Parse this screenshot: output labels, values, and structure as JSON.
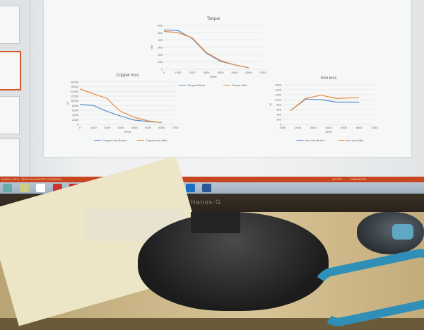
{
  "status_bar": {
    "left_text": "SLIDE 4 OF 8 · ENGLISH (UNITED KINGDOM)",
    "notes": "NOTES",
    "comments": "COMMENTS"
  },
  "monitor": {
    "brand": "HANNS-G"
  },
  "taskbar": {
    "icons": [
      "windows-start-icon",
      "file-explorer-icon",
      "chrome-icon",
      "vivaldi-icon",
      "acrobat-icon",
      "network-icon",
      "folder-icon",
      "antivirus-icon",
      "excel-icon",
      "powerpoint-icon",
      "media-icon",
      "outlook-icon",
      "word-icon"
    ]
  },
  "colors": {
    "series_blue": "#5b8fd0",
    "series_orange": "#e88a3c",
    "status_bar": "#c8461f"
  },
  "chart_data": [
    {
      "type": "line",
      "title": "Torque",
      "xlabel": "RPM",
      "ylabel": "Nm",
      "xlim": [
        0,
        7000
      ],
      "ylim": [
        0,
        600
      ],
      "xticks": [
        0,
        1000,
        2000,
        3000,
        4000,
        5000,
        6000,
        7000
      ],
      "yticks": [
        0,
        100,
        200,
        300,
        400,
        500,
        600
      ],
      "grid": true,
      "legend": "bottom",
      "series": [
        {
          "name": "Torque Before",
          "color": "#5b8fd0",
          "x": [
            0,
            1000,
            2000,
            3000,
            4000,
            5000,
            6000
          ],
          "y": [
            540,
            530,
            420,
            220,
            110,
            60,
            20
          ]
        },
        {
          "name": "Torque After",
          "color": "#e88a3c",
          "x": [
            0,
            1000,
            2000,
            3000,
            4000,
            5000,
            6000
          ],
          "y": [
            520,
            500,
            430,
            230,
            120,
            60,
            20
          ]
        }
      ]
    },
    {
      "type": "line",
      "title": "Copper loss",
      "xlabel": "RPM",
      "ylabel": "W",
      "xlim": [
        0,
        7000
      ],
      "ylim": [
        0,
        18000
      ],
      "xticks": [
        0,
        1000,
        2000,
        3000,
        4000,
        5000,
        6000,
        7000
      ],
      "yticks": [
        0,
        2000,
        4000,
        6000,
        8000,
        10000,
        12000,
        14000,
        16000,
        18000
      ],
      "grid": true,
      "legend": "bottom",
      "series": [
        {
          "name": "Copper loss Before",
          "color": "#5b8fd0",
          "x": [
            0,
            1000,
            2000,
            3000,
            4000,
            5000,
            6000
          ],
          "y": [
            8500,
            8000,
            5500,
            3500,
            1800,
            1200,
            800
          ]
        },
        {
          "name": "Copper loss After",
          "color": "#e88a3c",
          "x": [
            0,
            1000,
            2000,
            2500,
            3000,
            4000,
            5000,
            6000
          ],
          "y": [
            15000,
            13000,
            11000,
            8000,
            5500,
            3000,
            1500,
            700
          ]
        }
      ]
    },
    {
      "type": "line",
      "title": "Iron loss",
      "xlabel": "RPM",
      "ylabel": "W",
      "xlim": [
        1000,
        7000
      ],
      "ylim": [
        0,
        1600
      ],
      "xticks": [
        1000,
        2000,
        3000,
        4000,
        5000,
        6000,
        7000
      ],
      "yticks": [
        0,
        200,
        400,
        600,
        800,
        1000,
        1200,
        1400,
        1600
      ],
      "grid": true,
      "legend": "bottom",
      "series": [
        {
          "name": "Iron loss Before",
          "color": "#5b8fd0",
          "x": [
            1500,
            2500,
            3500,
            4500,
            6000
          ],
          "y": [
            550,
            1020,
            1000,
            900,
            900
          ]
        },
        {
          "name": "Iron loss After",
          "color": "#e88a3c",
          "x": [
            1500,
            2500,
            3500,
            4500,
            6000
          ],
          "y": [
            550,
            1050,
            1180,
            1050,
            1080
          ]
        }
      ]
    }
  ]
}
